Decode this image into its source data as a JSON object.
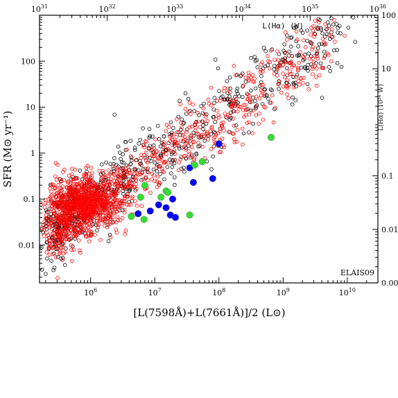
{
  "chart_data": {
    "type": "scatter",
    "ylabel": "SFR (M⊙ yr⁻¹)",
    "xlabel": "[L(7598Å)+L(7661Å)]/2 (L⊙)",
    "top_axis_label": "L(Hα) (W)",
    "right_axis_label": "L(Hα) (10³⁴ W)",
    "annotation": "ELAIS09",
    "xscale": "log",
    "yscale": "log",
    "xlim": [
      160000.0,
      30000000000.0
    ],
    "ylim": [
      0.0015,
      1000
    ],
    "bottom_ticks": [
      {
        "value": 1000000.0,
        "mant": "10",
        "exp": "6"
      },
      {
        "value": 10000000.0,
        "mant": "10",
        "exp": "7"
      },
      {
        "value": 100000000.0,
        "mant": "10",
        "exp": "8"
      },
      {
        "value": 1000000000.0,
        "mant": "10",
        "exp": "9"
      },
      {
        "value": 10000000000.0,
        "mant": "10",
        "exp": "10"
      }
    ],
    "left_ticks": [
      {
        "value": 0.01,
        "label": "0.01"
      },
      {
        "value": 0.1,
        "label": "0.1"
      },
      {
        "value": 1,
        "label": "1"
      },
      {
        "value": 10,
        "label": "10"
      },
      {
        "value": 100,
        "label": "100"
      }
    ],
    "top_ticks": [
      {
        "mant": "10",
        "exp": "31",
        "frac": 0.0
      },
      {
        "mant": "10",
        "exp": "32",
        "frac": 0.2
      },
      {
        "mant": "10",
        "exp": "33",
        "frac": 0.4
      },
      {
        "mant": "10",
        "exp": "34",
        "frac": 0.6
      },
      {
        "mant": "10",
        "exp": "35",
        "frac": 0.8
      },
      {
        "mant": "10",
        "exp": "36",
        "frac": 1.0
      }
    ],
    "right_ticks": [
      {
        "label": "100",
        "frac": 0.0
      },
      {
        "label": "10",
        "frac": 0.2
      },
      {
        "label": "0.1",
        "frac": 0.6
      },
      {
        "label": "0.01",
        "frac": 0.8
      },
      {
        "label": "0.00",
        "frac": 1.0
      }
    ],
    "series": [
      {
        "marker": "open-circle",
        "color": "#000000",
        "count": 700,
        "center": {
          "x": 18000000.0,
          "y": 0.25
        }
      },
      {
        "marker": "open-circle",
        "color": "#ff0000",
        "count": 1600,
        "center": {
          "x": 12000000.0,
          "y": 0.12
        }
      },
      {
        "marker": "filled-circle",
        "color": "#0000ff",
        "x": [
          5500000.0,
          8500000.0,
          11500000.0,
          15000000.0,
          17500000.0,
          19000000.0,
          21000000.0,
          35000000.0,
          40000000.0,
          80000000.0,
          100000000.0
        ],
        "y": [
          0.048,
          0.055,
          0.075,
          0.065,
          0.045,
          0.1,
          0.04,
          0.48,
          0.23,
          0.28,
          1.6
        ]
      },
      {
        "marker": "filled-circle",
        "color": "#33dd33",
        "x": [
          4300000.0,
          6000000.0,
          6800000.0,
          7000000.0,
          12500000.0,
          15000000.0,
          16000000.0,
          35000000.0,
          42000000.0,
          55000000.0,
          650000000.0
        ],
        "y": [
          0.042,
          0.11,
          0.036,
          0.2,
          0.11,
          0.15,
          0.14,
          0.045,
          0.55,
          0.65,
          2.2
        ]
      }
    ]
  }
}
